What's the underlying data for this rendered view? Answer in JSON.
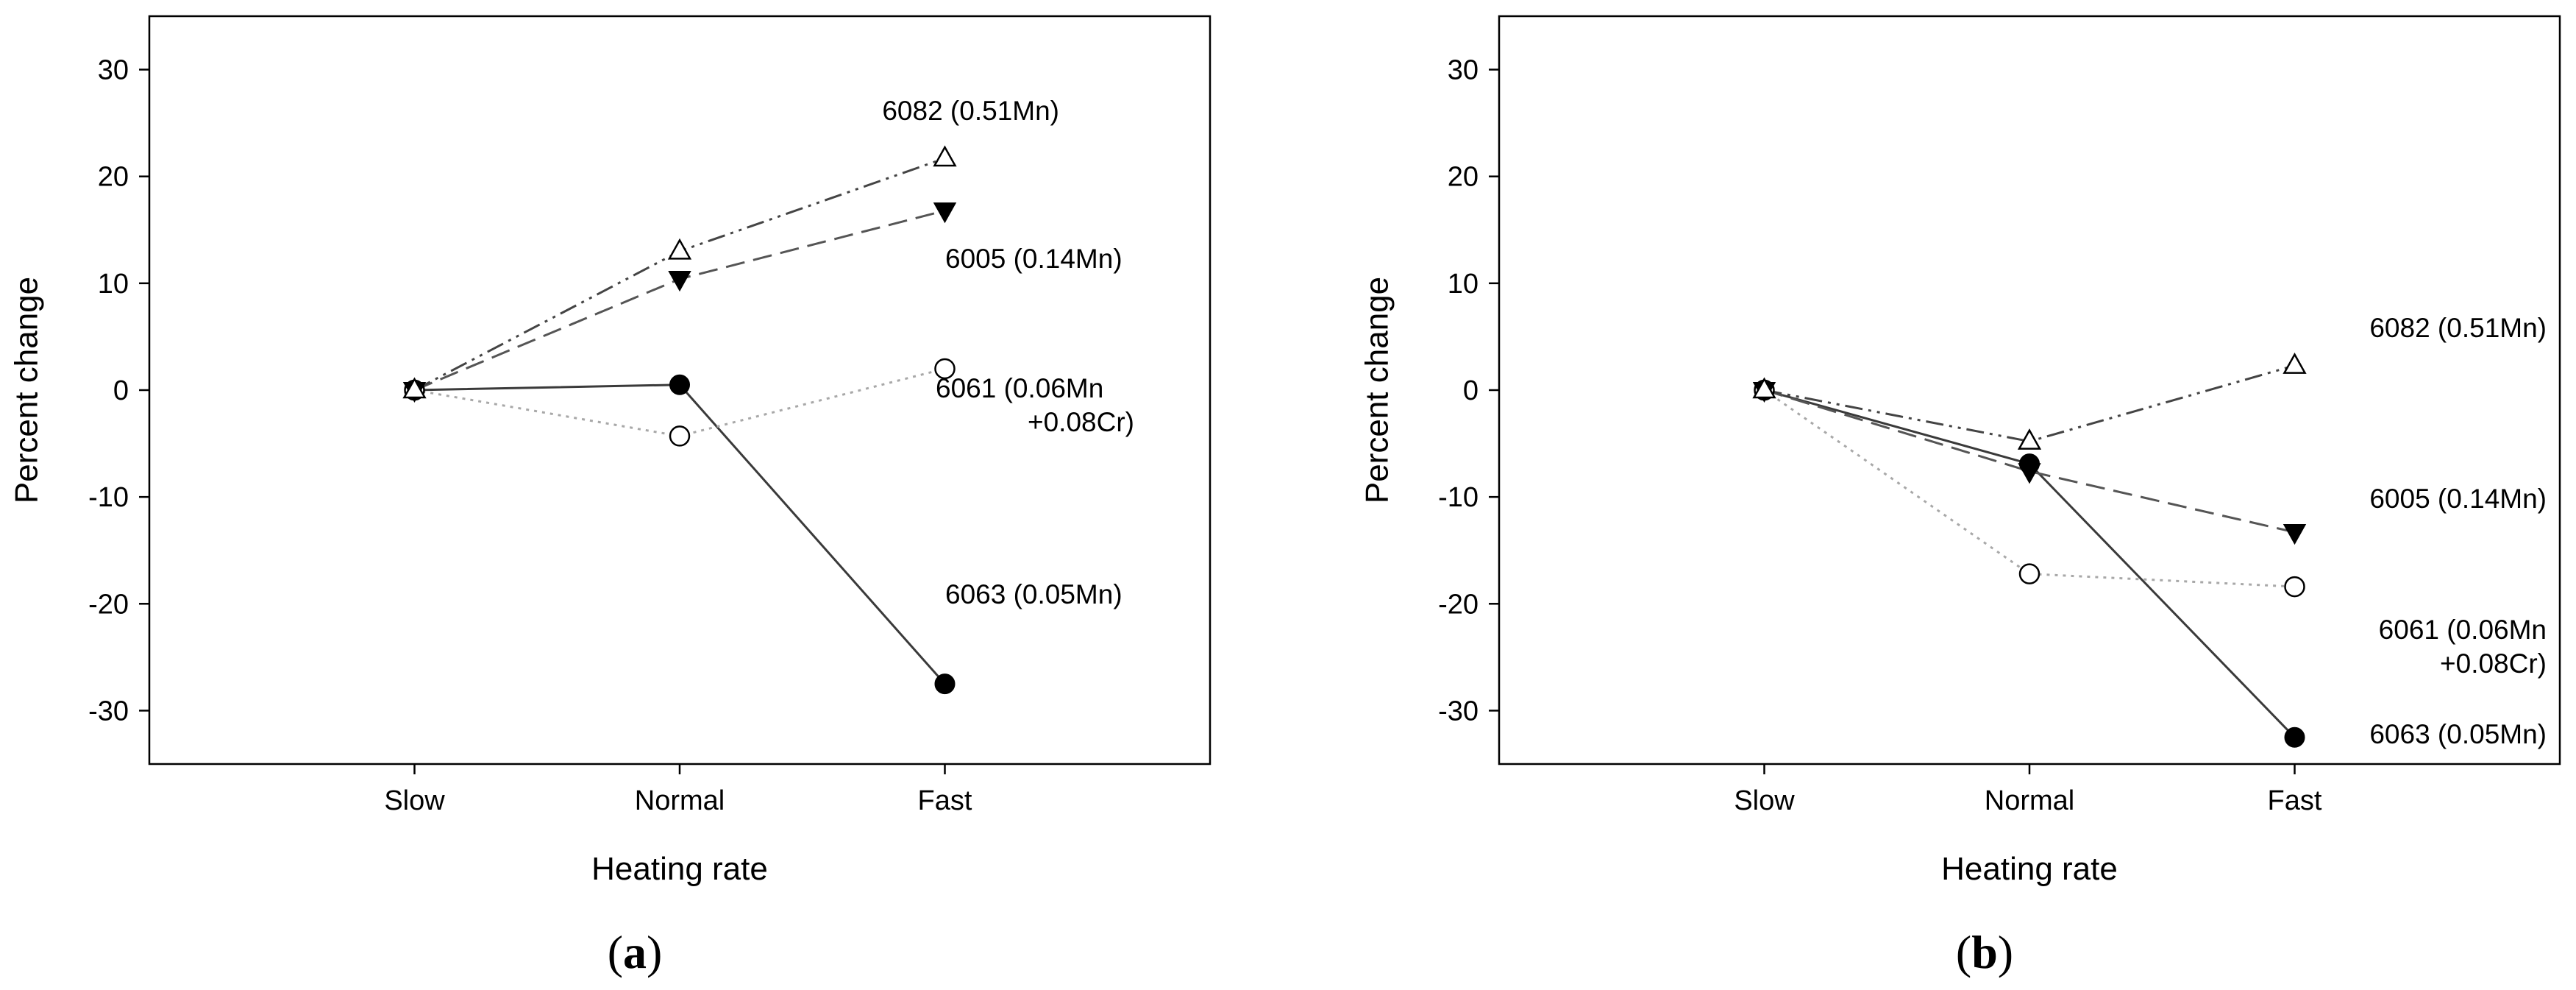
{
  "chart_data": [
    {
      "type": "line",
      "panel_label": "a",
      "xlabel": "Heating rate",
      "ylabel": "Percent change",
      "categories": [
        "Slow",
        "Normal",
        "Fast"
      ],
      "ylim": [
        -35,
        35
      ],
      "yticks": [
        -30,
        -20,
        -10,
        0,
        10,
        20,
        30
      ],
      "grid": false,
      "series": [
        {
          "name": "6082 (0.51Mn)",
          "values": [
            0,
            13,
            21.7
          ],
          "marker": "triangle-up-open",
          "line": "dash-dot-dot"
        },
        {
          "name": "6005 (0.14Mn)",
          "values": [
            0,
            10.4,
            16.8
          ],
          "marker": "triangle-down-filled",
          "line": "dashed"
        },
        {
          "name": "6061 (0.06Mn\n+0.08Cr)",
          "values": [
            0,
            -4.3,
            2
          ],
          "marker": "circle-open",
          "line": "dotted"
        },
        {
          "name": "6063 (0.05Mn)",
          "values": [
            0,
            0.5,
            -27.5
          ],
          "marker": "circle-filled",
          "line": "solid"
        }
      ]
    },
    {
      "type": "line",
      "panel_label": "b",
      "xlabel": "Heating rate",
      "ylabel": "Percent change",
      "categories": [
        "Slow",
        "Normal",
        "Fast"
      ],
      "ylim": [
        -35,
        35
      ],
      "yticks": [
        -30,
        -20,
        -10,
        0,
        10,
        20,
        30
      ],
      "grid": false,
      "series": [
        {
          "name": "6082 (0.51Mn)",
          "values": [
            0,
            -4.8,
            2.3
          ],
          "marker": "triangle-up-open",
          "line": "dash-dot-dot"
        },
        {
          "name": "6005 (0.14Mn)",
          "values": [
            0,
            -7.6,
            -13.3
          ],
          "marker": "triangle-down-filled",
          "line": "dashed"
        },
        {
          "name": "6061 (0.06Mn\n+0.08Cr)",
          "values": [
            0,
            -17.2,
            -18.4
          ],
          "marker": "circle-open",
          "line": "dotted"
        },
        {
          "name": "6063 (0.05Mn)",
          "values": [
            0,
            -6.9,
            -32.5
          ],
          "marker": "circle-filled",
          "line": "solid"
        }
      ]
    }
  ]
}
